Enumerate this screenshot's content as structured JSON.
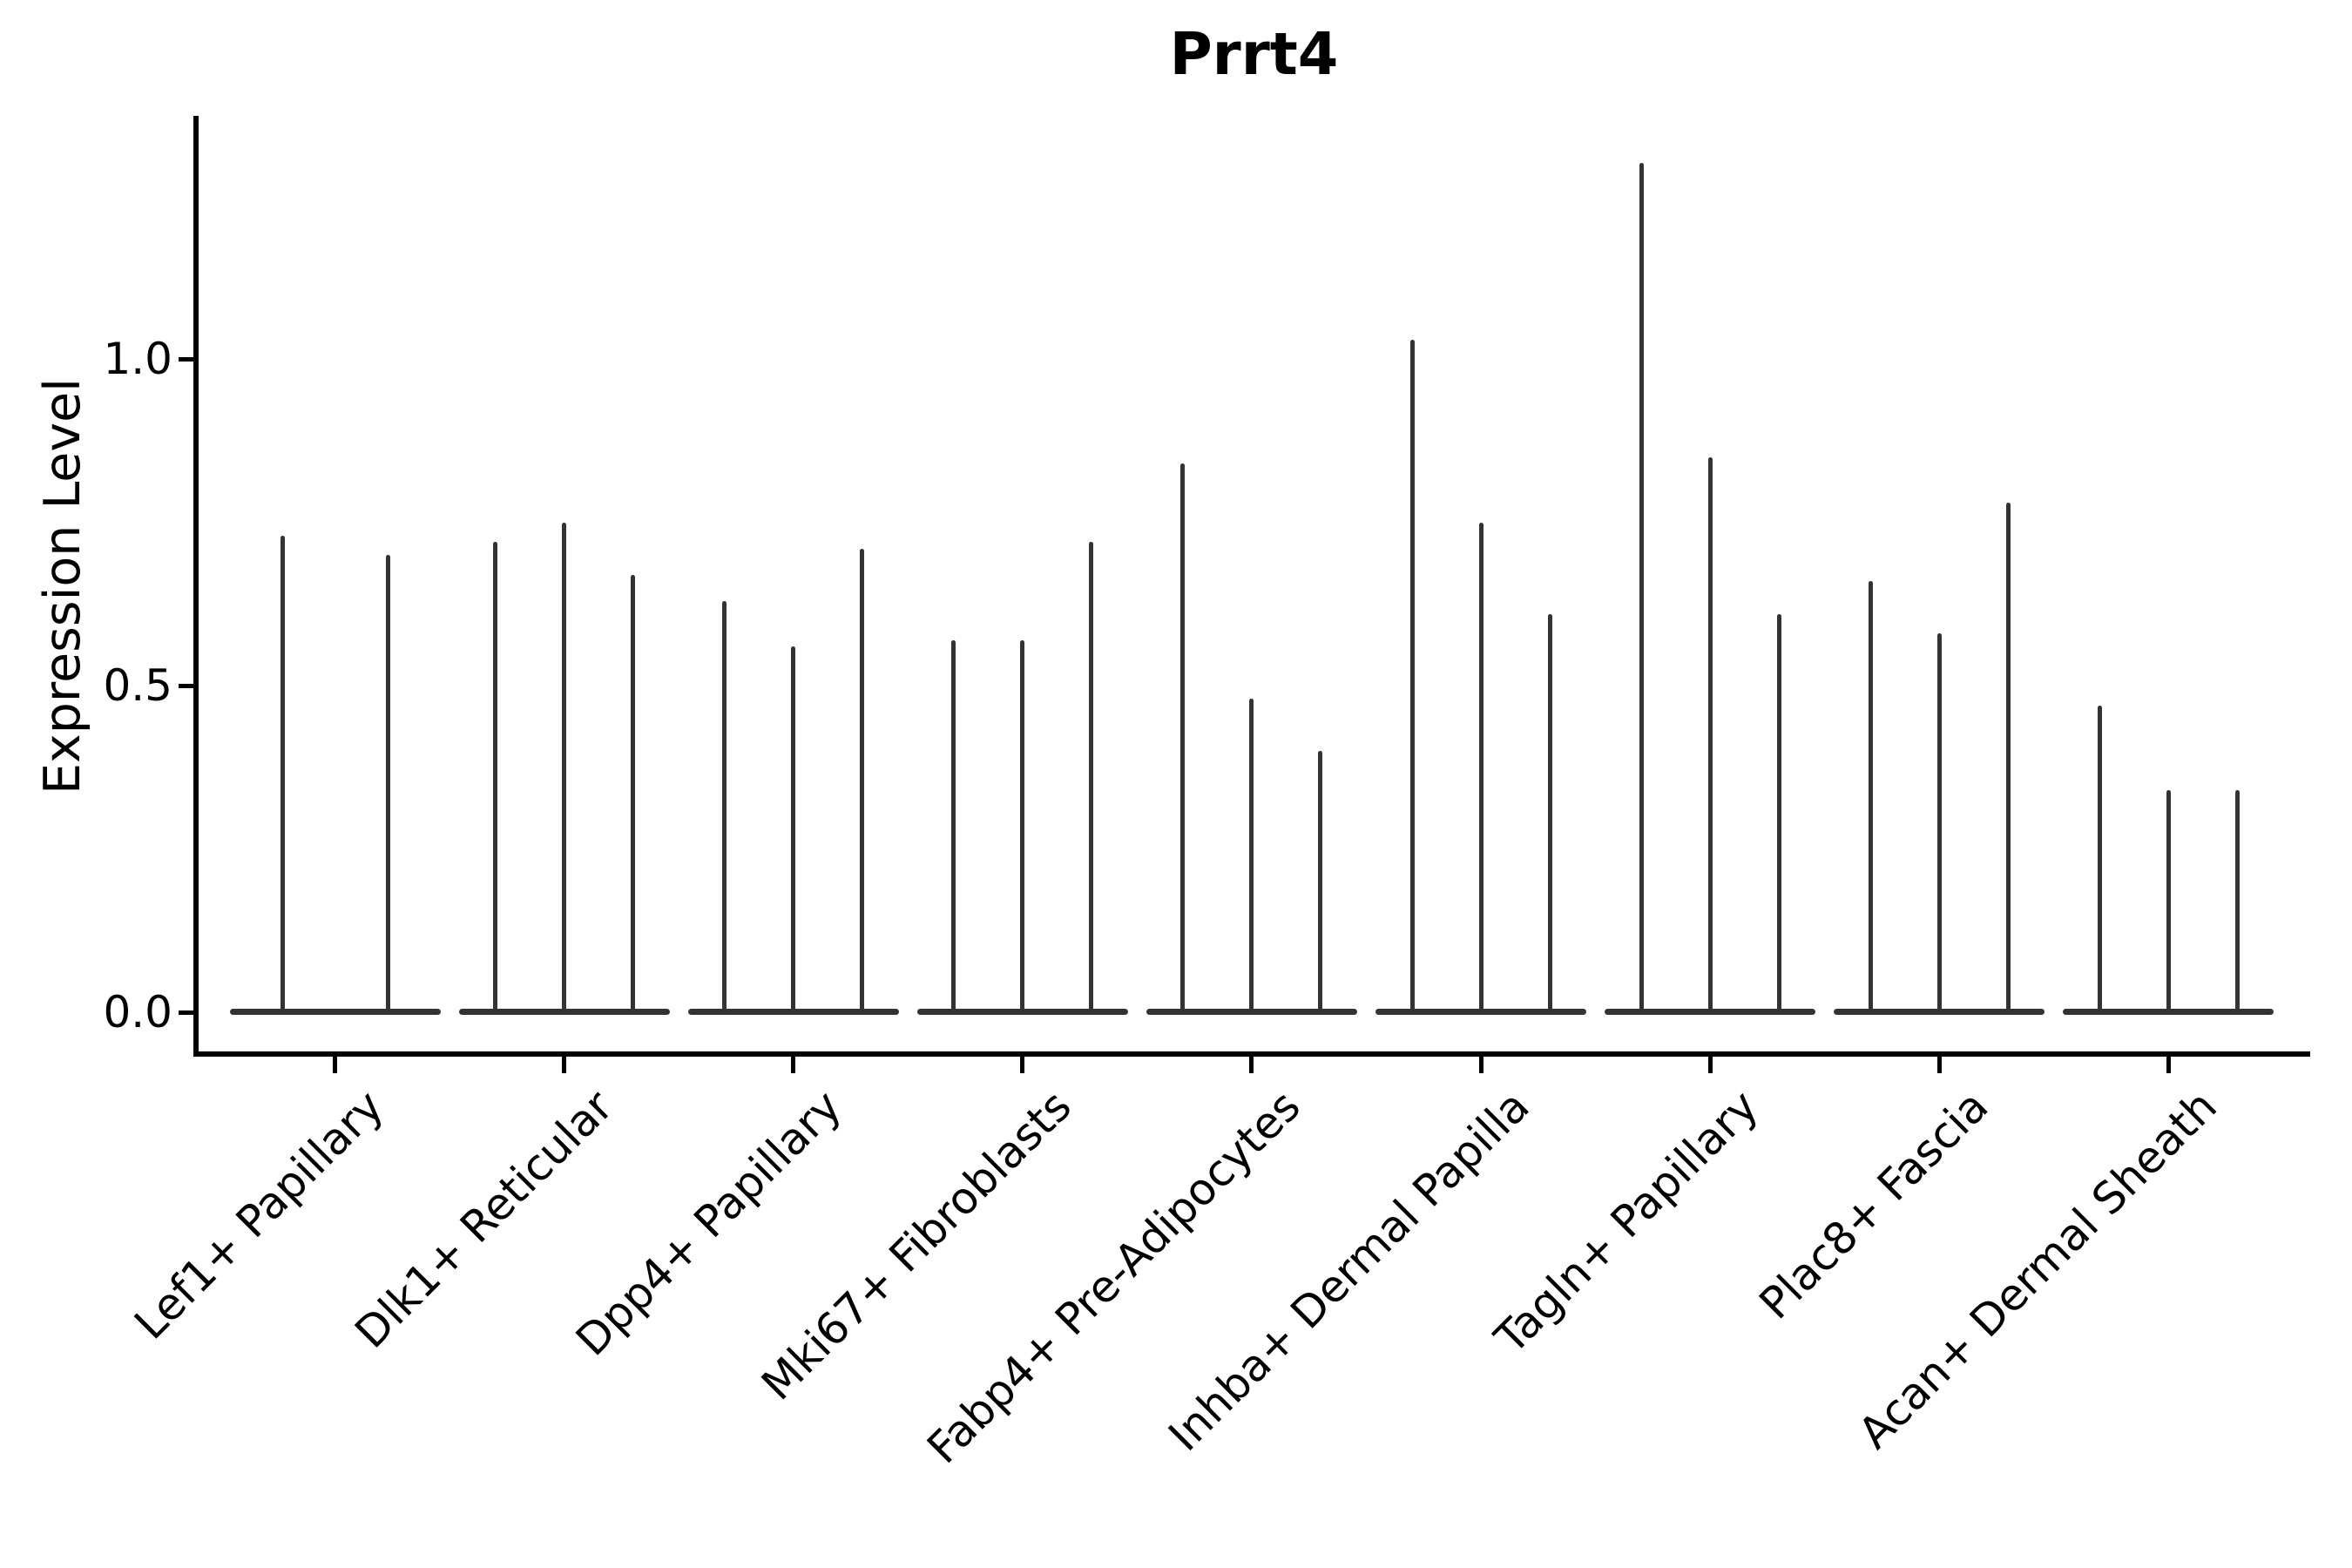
{
  "figure": {
    "background_color": "#ffffff",
    "axis_color": "#000000",
    "violin_color": "#333333"
  },
  "chart_data": {
    "type": "violin",
    "title": "Prrt4",
    "xlabel": "",
    "ylabel": "Expression Level",
    "yticks": [
      0.0,
      0.5,
      1.0
    ],
    "ytick_labels": [
      "0.0",
      "0.5",
      "1.0"
    ],
    "ylim": [
      -0.07,
      1.37
    ],
    "grid": "off",
    "legend": "none",
    "description": "Needle-thin violins: bulk of expression values at 0 (flat base), thin spike to max expression per violin",
    "categories": [
      "Lef1+ Papillary",
      "Dlk1+ Reticular",
      "Dpp4+ Papillary",
      "Mki67+ Fibroblasts",
      "Fabp4+ Pre-Adipocytes",
      "Inhba+ Dermal Papilla",
      "Tagln+ Papillary",
      "Plac8+ Fascia",
      "Acan+ Dermal Sheath"
    ],
    "groups": [
      {
        "category": "Lef1+ Papillary",
        "spike_max_values": [
          0.73,
          0.7
        ]
      },
      {
        "category": "Dlk1+ Reticular",
        "spike_max_values": [
          0.72,
          0.75,
          0.67
        ]
      },
      {
        "category": "Dpp4+ Papillary",
        "spike_max_values": [
          0.63,
          0.56,
          0.71
        ]
      },
      {
        "category": "Mki67+ Fibroblasts",
        "spike_max_values": [
          0.57,
          0.57,
          0.72
        ]
      },
      {
        "category": "Fabp4+ Pre-Adipocytes",
        "spike_max_values": [
          0.84,
          0.48,
          0.4
        ]
      },
      {
        "category": "Inhba+ Dermal Papilla",
        "spike_max_values": [
          1.03,
          0.75,
          0.61
        ]
      },
      {
        "category": "Tagln+ Papillary",
        "spike_max_values": [
          1.3,
          0.85,
          0.61
        ]
      },
      {
        "category": "Plac8+ Fascia",
        "spike_max_values": [
          0.66,
          0.58,
          0.78
        ]
      },
      {
        "category": "Acan+ Dermal Sheath",
        "spike_max_values": [
          0.47,
          0.34,
          0.34
        ]
      }
    ]
  }
}
